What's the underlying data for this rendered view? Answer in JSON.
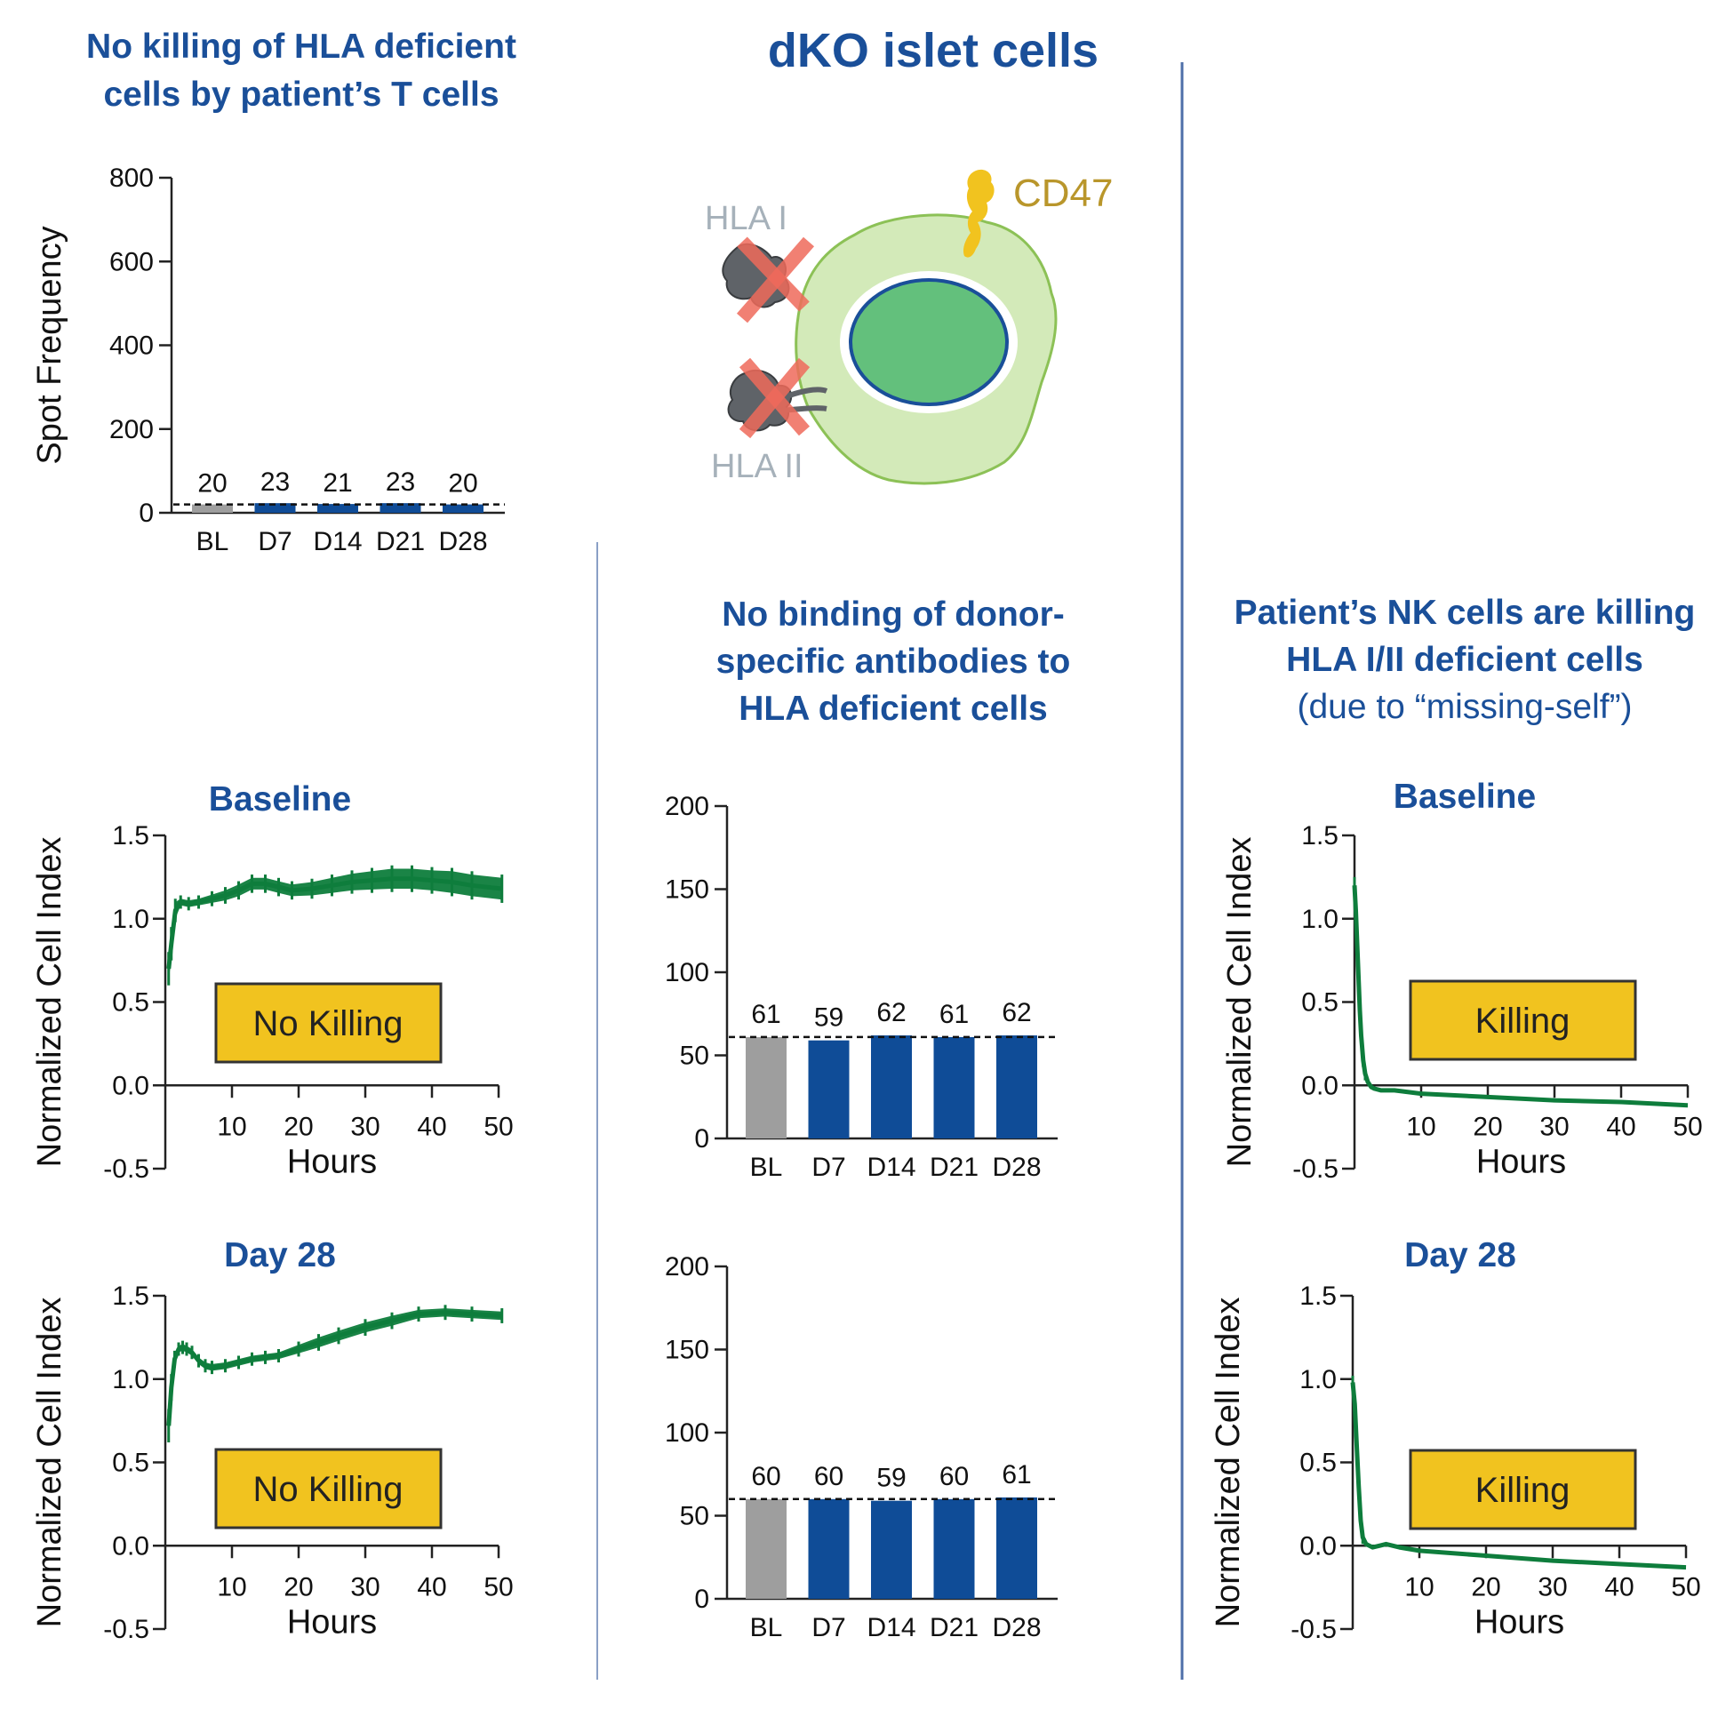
{
  "headings": {
    "tcell": [
      "No killing of HLA deficient",
      "cells by patient’s T cells"
    ],
    "main": "dKO islet cells",
    "dsa": [
      "No binding of donor-",
      "specific antibodies to",
      "HLA deficient cells"
    ],
    "nk": [
      "Patient’s NK cells are killing",
      "HLA I/II deficient cells"
    ],
    "nk_note": "(due to “missing-self”)"
  },
  "diagram": {
    "labels": {
      "hla1": "HLA I",
      "hla2": "HLA II",
      "cd47": "CD47"
    },
    "colors": {
      "cytoplasm": "#d3eab9",
      "nucleus": "#63c07c",
      "nucleus_rim": "#1a4f99",
      "cd47": "#f1c31f",
      "hla": "#5f6368",
      "cross": "#ee6a5a",
      "hla_label": "#a6b1ba",
      "cd47_label": "#b9962b"
    }
  },
  "colors": {
    "heading": "#1a4f99",
    "bar_bl": "#9e9e9e",
    "bar_day": "#0f4c97",
    "trace": "#0e7d3c",
    "callout": "#f1c31f"
  },
  "chart_data": [
    {
      "id": "tcell",
      "type": "bar",
      "categories": [
        "BL",
        "D7",
        "D14",
        "D21",
        "D28"
      ],
      "values": [
        20,
        23,
        21,
        23,
        20
      ],
      "value_labels": [
        "20",
        "23",
        "21",
        "23",
        "20"
      ],
      "ylabel": "Spot Frequency",
      "ylim": [
        0,
        800
      ],
      "yticks": [
        0,
        200,
        400,
        600,
        800
      ],
      "reference_line": 20
    },
    {
      "id": "dsa_bl",
      "type": "bar",
      "categories": [
        "BL",
        "D7",
        "D14",
        "D21",
        "D28"
      ],
      "values": [
        61,
        59,
        62,
        61,
        62
      ],
      "value_labels": [
        "61",
        "59",
        "62",
        "61",
        "62"
      ],
      "ylim": [
        0,
        200
      ],
      "yticks": [
        0,
        50,
        100,
        150,
        200
      ],
      "reference_line": 61
    },
    {
      "id": "dsa_d28",
      "type": "bar",
      "categories": [
        "BL",
        "D7",
        "D14",
        "D21",
        "D28"
      ],
      "values": [
        60,
        60,
        59,
        60,
        61
      ],
      "value_labels": [
        "60",
        "60",
        "59",
        "60",
        "61"
      ],
      "ylim": [
        0,
        200
      ],
      "yticks": [
        0,
        50,
        100,
        150,
        200
      ],
      "reference_line": 60
    },
    {
      "id": "tc_bl",
      "type": "line",
      "title": "Baseline",
      "xlabel": "Hours",
      "ylabel": "Normalized Cell Index",
      "xlim": [
        0,
        50
      ],
      "ylim": [
        -0.5,
        1.5
      ],
      "xticks": [
        10,
        20,
        30,
        40,
        50
      ],
      "yticks": [
        "-0.5",
        "0.0",
        "0.5",
        "1.0",
        "1.5"
      ],
      "annotation": "No Killing",
      "x": [
        0.5,
        0.9,
        1.5,
        2.3,
        3.5,
        5,
        7,
        9,
        11,
        13,
        15,
        17,
        19,
        22,
        25,
        28,
        31,
        34,
        37,
        40,
        43,
        46,
        50.5
      ],
      "y": [
        0.7,
        0.85,
        1.05,
        1.1,
        1.09,
        1.1,
        1.12,
        1.14,
        1.17,
        1.21,
        1.21,
        1.19,
        1.17,
        1.18,
        1.2,
        1.22,
        1.23,
        1.24,
        1.24,
        1.23,
        1.22,
        1.2,
        1.18
      ],
      "spread": [
        0.08,
        0.08,
        0.05,
        0.02,
        0.02,
        0.02,
        0.025,
        0.03,
        0.035,
        0.035,
        0.035,
        0.035,
        0.035,
        0.04,
        0.045,
        0.05,
        0.055,
        0.06,
        0.06,
        0.06,
        0.065,
        0.065,
        0.065
      ]
    },
    {
      "id": "tc_d28",
      "type": "line",
      "title": "Day 28",
      "xlabel": "Hours",
      "ylabel": "Normalized Cell Index",
      "xlim": [
        0,
        50
      ],
      "ylim": [
        -0.5,
        1.5
      ],
      "xticks": [
        10,
        20,
        30,
        40,
        50
      ],
      "yticks": [
        "-0.5",
        "0.0",
        "0.5",
        "1.0",
        "1.5"
      ],
      "annotation": "No Killing",
      "x": [
        0.5,
        0.9,
        1.4,
        2,
        2.6,
        3.2,
        4,
        5,
        6,
        7,
        9,
        11,
        13,
        15,
        17,
        20,
        23,
        26,
        30,
        34,
        38,
        42,
        46,
        50.5
      ],
      "y": [
        0.72,
        0.95,
        1.12,
        1.18,
        1.19,
        1.18,
        1.16,
        1.11,
        1.08,
        1.07,
        1.08,
        1.1,
        1.12,
        1.13,
        1.14,
        1.18,
        1.22,
        1.26,
        1.31,
        1.35,
        1.39,
        1.4,
        1.39,
        1.38
      ],
      "spread": [
        0.08,
        0.06,
        0.03,
        0.02,
        0.02,
        0.02,
        0.02,
        0.02,
        0.02,
        0.02,
        0.02,
        0.02,
        0.02,
        0.02,
        0.02,
        0.025,
        0.03,
        0.03,
        0.03,
        0.03,
        0.025,
        0.025,
        0.025,
        0.025
      ]
    },
    {
      "id": "nk_bl",
      "type": "line",
      "title": "Baseline",
      "xlabel": "Hours",
      "ylabel": "Normalized Cell Index",
      "xlim": [
        0,
        50
      ],
      "ylim": [
        -0.5,
        1.5
      ],
      "xticks": [
        10,
        20,
        30,
        40,
        50
      ],
      "yticks": [
        "-0.5",
        "0.0",
        "0.5",
        "1.0",
        "1.5"
      ],
      "annotation": "Killing",
      "x": [
        0,
        0.2,
        0.4,
        0.6,
        0.8,
        1,
        1.3,
        1.6,
        2,
        2.5,
        3,
        4,
        6,
        10,
        20,
        30,
        40,
        50
      ],
      "y": [
        1.2,
        1.05,
        0.85,
        0.65,
        0.45,
        0.3,
        0.15,
        0.07,
        0.02,
        -0.01,
        -0.02,
        -0.03,
        -0.03,
        -0.05,
        -0.07,
        -0.09,
        -0.1,
        -0.12
      ],
      "spread": [
        0.03,
        0.03,
        0.03,
        0.03,
        0.03,
        0.03,
        0.02,
        0.02,
        0.01,
        0.01,
        0.01,
        0.01,
        0.01,
        0.01,
        0.01,
        0.01,
        0.01,
        0.01
      ]
    },
    {
      "id": "nk_d28",
      "type": "line",
      "title": "Day 28",
      "xlabel": "Hours",
      "ylabel": "Normalized Cell Index",
      "xlim": [
        0,
        50
      ],
      "ylim": [
        -0.5,
        1.5
      ],
      "xticks": [
        10,
        20,
        30,
        40,
        50
      ],
      "yticks": [
        "-0.5",
        "0.0",
        "0.5",
        "1.0",
        "1.5"
      ],
      "annotation": "Killing",
      "x": [
        0,
        0.3,
        0.6,
        0.9,
        1.2,
        1.5,
        2,
        2.5,
        3,
        4,
        5,
        7,
        10,
        20,
        30,
        40,
        50
      ],
      "y": [
        0.98,
        0.85,
        0.6,
        0.35,
        0.15,
        0.05,
        0.01,
        0.0,
        -0.01,
        0.0,
        0.01,
        -0.01,
        -0.03,
        -0.06,
        -0.09,
        -0.11,
        -0.13
      ],
      "spread": [
        0.02,
        0.03,
        0.03,
        0.03,
        0.02,
        0.02,
        0.01,
        0.01,
        0.01,
        0.01,
        0.01,
        0.01,
        0.01,
        0.01,
        0.01,
        0.01,
        0.01
      ]
    }
  ]
}
